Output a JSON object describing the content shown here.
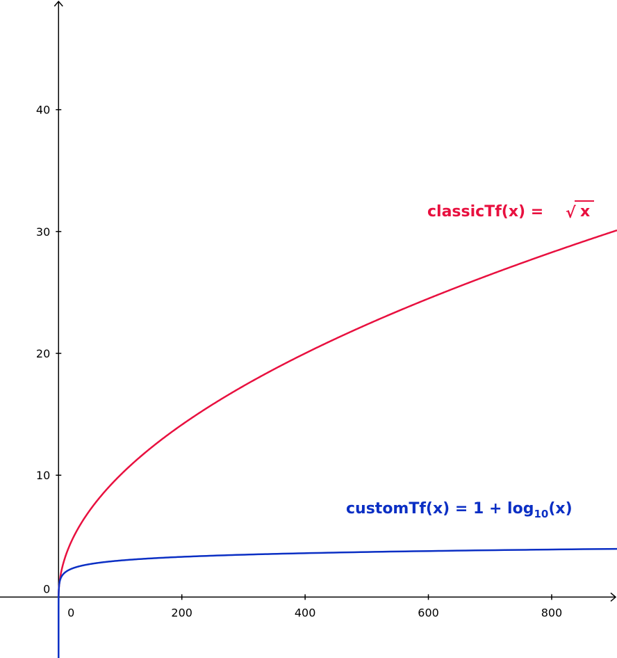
{
  "chart_data": {
    "type": "line",
    "title": "",
    "xlabel": "",
    "ylabel": "",
    "xlim": [
      -95,
      906
    ],
    "ylim": [
      -5,
      49
    ],
    "x_ticks": [
      0,
      200,
      400,
      600,
      800
    ],
    "y_ticks": [
      0,
      10,
      20,
      30,
      40
    ],
    "x_tick_labels": [
      "0",
      "200",
      "400",
      "600",
      "800"
    ],
    "y_tick_labels": [
      "0",
      "10",
      "20",
      "30",
      "40"
    ],
    "grid": false,
    "series": [
      {
        "name": "classicTf",
        "function": "sqrt",
        "color": "#e8103f",
        "label": {
          "prefix": "classicTf(x) = ",
          "radical": "√",
          "radicand": "x"
        }
      },
      {
        "name": "customTf",
        "function": "1+log10",
        "color": "#0b2fc4",
        "label": {
          "prefix": "customTf(x) = 1 + log",
          "subscript": "10",
          "suffix": "(x)"
        }
      }
    ]
  }
}
